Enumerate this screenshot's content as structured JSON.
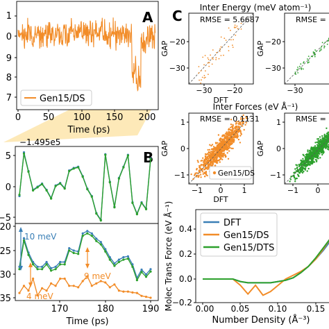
{
  "panel_letters": {
    "a": "A",
    "b": "B",
    "c": "C"
  },
  "colors": {
    "orange": "#f28c28",
    "blue": "#3a7fb6",
    "green": "#2ca02c",
    "highlight": "#fde9b8"
  },
  "chart_data": [
    {
      "id": "A",
      "type": "line",
      "xlabel": "Time (ps)",
      "xticks": [
        "0",
        "50",
        "100",
        "150",
        "200"
      ],
      "yticks": [
        "1",
        "0",
        "9",
        "8",
        "7"
      ],
      "legend": [
        "Gen15/DS"
      ]
    },
    {
      "id": "B-top",
      "type": "line",
      "offset_label": "−1.495e5",
      "yticks": [
        "5",
        "0",
        "−5"
      ],
      "x": [
        161,
        162,
        163,
        164,
        165,
        166,
        167,
        168,
        169,
        170,
        171,
        172,
        173,
        174,
        175,
        176,
        177,
        178,
        179,
        180,
        181,
        182,
        183,
        184,
        185,
        186,
        187,
        188,
        189,
        190
      ],
      "series": [
        {
          "values": [
            -1.5,
            5.5,
            2.5,
            -0.5,
            0,
            0.5,
            -0.5,
            -1.8,
            0.2,
            0.6,
            -0.2,
            2.6,
            3,
            3.2,
            1.7,
            -0.3,
            -1.5,
            -4.2,
            -5.3,
            5.2,
            0.8,
            -3.2,
            1.4,
            3.2,
            5.1,
            -2.5,
            -4.3,
            -2.5,
            -3.5,
            4.5
          ]
        },
        {
          "values": [
            -1.3,
            5.3,
            2.4,
            -0.6,
            -0.1,
            0.4,
            -0.6,
            -1.9,
            0.1,
            0.5,
            -0.3,
            2.5,
            2.9,
            3.1,
            1.6,
            -0.4,
            -1.6,
            -4.3,
            -5.4,
            5.1,
            0.7,
            -3.3,
            1.3,
            3.1,
            5,
            -2.6,
            -4.4,
            -2.6,
            -3.6,
            4.4
          ]
        }
      ]
    },
    {
      "id": "B-bottom",
      "type": "line",
      "xlabel": "Time (ps)",
      "xticks": [
        "170",
        "180",
        "190"
      ],
      "yticks": [
        "20",
        "25",
        "30",
        "35"
      ],
      "x": [
        161,
        162,
        163,
        164,
        165,
        166,
        167,
        168,
        169,
        170,
        171,
        172,
        173,
        174,
        175,
        176,
        177,
        178,
        179,
        180,
        181,
        182,
        183,
        184,
        185,
        186,
        187,
        188,
        189,
        190
      ],
      "series": [
        {
          "values": [
            28.5,
            22.5,
            25.5,
            27.5,
            28.5,
            28.5,
            27.5,
            28.8,
            28.5,
            27.5,
            27.5,
            24.6,
            25.1,
            25.3,
            21.5,
            21,
            21.5,
            22.6,
            23.3,
            24.8,
            26.5,
            27.8,
            27,
            26.5,
            26.3,
            28,
            30.8,
            29.1,
            30.1,
            29
          ]
        },
        {
          "values": [
            29,
            23,
            26,
            28,
            29,
            29,
            28,
            29.3,
            29,
            28,
            28,
            25.1,
            25.6,
            25.8,
            22,
            21.5,
            22,
            23.1,
            23.8,
            25.3,
            27,
            28.3,
            27.5,
            27,
            26.8,
            28.5,
            31.3,
            29.6,
            30.6,
            29.5
          ]
        },
        {
          "values": [
            34,
            32.5,
            33.5,
            31,
            34.5,
            33,
            33.5,
            32,
            32.5,
            31,
            31,
            32.5,
            32.5,
            32.8,
            31.5,
            30.5,
            32.5,
            32,
            31.5,
            31.8,
            32.8,
            32.2,
            33.5,
            33.7,
            33.7,
            33.9,
            34,
            34.6,
            34.8,
            35
          ]
        }
      ],
      "annotations": [
        "10 meV",
        "9 meV",
        "4 meV"
      ]
    },
    {
      "id": "C-energy-1",
      "type": "scatter",
      "title": "Inter Energy (meV atom⁻¹)",
      "rmse": "RMSE = 5.6687",
      "xlabel": "DFT",
      "ylabel": "GAP",
      "xticks": [
        "−30",
        "−20"
      ],
      "yticks": [
        "−20",
        "−30"
      ]
    },
    {
      "id": "C-energy-2",
      "type": "scatter",
      "rmse": "RMSE = 1",
      "ylabel": "GAP",
      "xticks": [
        "−30"
      ],
      "yticks": [
        "−20",
        "−30"
      ]
    },
    {
      "id": "C-forces-1",
      "type": "scatter",
      "title": "Inter Forces (eV Å⁻¹)",
      "rmse": "RMSE = 0.1131",
      "xlabel": "DFT",
      "ylabel": "GAP",
      "xticks": [
        "−1",
        "0",
        "1"
      ],
      "yticks": [
        "1",
        "0",
        "−1"
      ],
      "legend": [
        "Gen15/DS"
      ]
    },
    {
      "id": "C-forces-2",
      "type": "scatter",
      "rmse": "RMSE = 0",
      "ylabel": "GAP",
      "xticks": [
        "−1",
        "0"
      ],
      "yticks": [
        "1",
        "0",
        "−1"
      ]
    },
    {
      "id": "D",
      "type": "line",
      "xlabel": "Number Density (Å⁻³)",
      "ylabel": "Molec Trans Force (eV Å⁻¹)",
      "xticks": [
        "0.00",
        "0.05",
        "0.10",
        "0.15"
      ],
      "yticks": [
        "0.4",
        "0.2",
        "0.0",
        "−0.2"
      ],
      "x": [
        0,
        0.02,
        0.04,
        0.05,
        0.06,
        0.07,
        0.08,
        0.09,
        0.1,
        0.11,
        0.12,
        0.13,
        0.14,
        0.15,
        0.16,
        0.17,
        0.18
      ],
      "series": [
        {
          "name": "DFT",
          "values": [
            0,
            0,
            0,
            -0.02,
            -0.03,
            -0.03,
            -0.03,
            -0.03,
            -0.02,
            -0.01,
            0.01,
            0.05,
            0.1,
            0.16,
            0.23,
            0.31,
            0.4
          ]
        },
        {
          "name": "Gen15/DS",
          "values": [
            0,
            0,
            0,
            -0.05,
            -0.12,
            -0.05,
            -0.13,
            -0.1,
            -0.05,
            0,
            0.03,
            0.06,
            0.1,
            0.16,
            0.24,
            0.33,
            0.41
          ]
        },
        {
          "name": "Gen15/DTS",
          "values": [
            0,
            0,
            0,
            -0.02,
            -0.03,
            -0.03,
            -0.03,
            -0.03,
            -0.02,
            -0.01,
            0.01,
            0.05,
            0.1,
            0.17,
            0.25,
            0.33,
            0.42
          ]
        }
      ]
    }
  ]
}
